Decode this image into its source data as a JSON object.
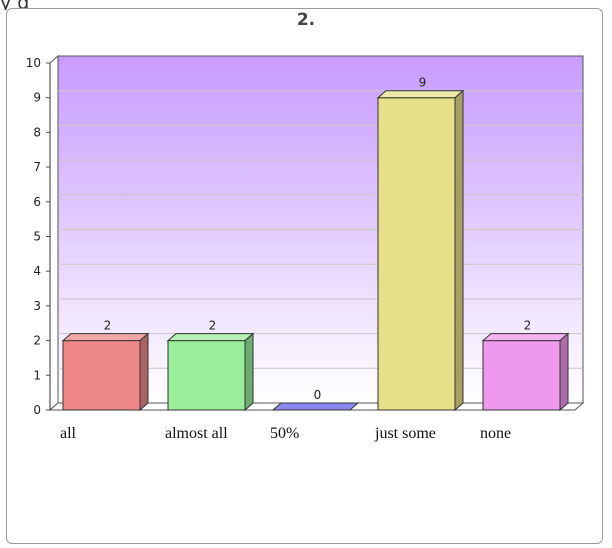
{
  "caption": "y                                    g",
  "chart_data": {
    "type": "bar",
    "title": "2.",
    "categories": [
      "all",
      "almost all",
      "50%",
      "just some",
      "none"
    ],
    "values": [
      2,
      2,
      0,
      9,
      2
    ],
    "ylim": [
      0,
      10
    ],
    "yticks": [
      0,
      1,
      2,
      3,
      4,
      5,
      6,
      7,
      8,
      9,
      10
    ],
    "grid": true,
    "colors": [
      "#ee8888",
      "#99ee99",
      "#8888ee",
      "#e6e088",
      "#ee99ee"
    ],
    "background_gradient": [
      "#c79bff",
      "#ffffff"
    ]
  }
}
